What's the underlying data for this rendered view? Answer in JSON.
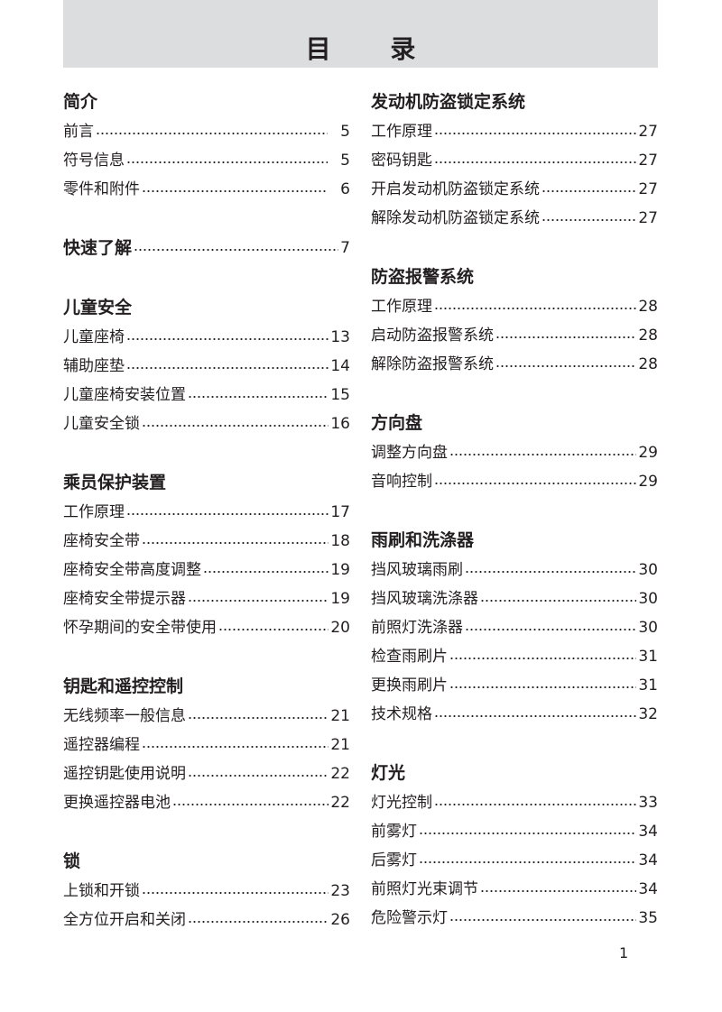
{
  "title": "目 录",
  "page_number": "1",
  "columns": [
    [
      {
        "heading": "简介",
        "gap": true,
        "items": [
          {
            "label": "前言",
            "page": "5"
          },
          {
            "label": "符号信息",
            "page": "5"
          },
          {
            "label": "零件和附件",
            "page": "6"
          }
        ]
      },
      {
        "heading": "快速了解",
        "page": "7",
        "items": []
      },
      {
        "heading": "儿童安全",
        "items": [
          {
            "label": "儿童座椅",
            "page": "13"
          },
          {
            "label": "辅助座垫",
            "page": "14"
          },
          {
            "label": "儿童座椅安装位置",
            "page": "15"
          },
          {
            "label": "儿童安全锁",
            "page": "16"
          }
        ]
      },
      {
        "heading": "乘员保护装置",
        "items": [
          {
            "label": "工作原理",
            "page": "17"
          },
          {
            "label": "座椅安全带",
            "page": "18"
          },
          {
            "label": "座椅安全带高度调整",
            "page": "19"
          },
          {
            "label": "座椅安全带提示器",
            "page": "19"
          },
          {
            "label": "怀孕期间的安全带使用",
            "page": "20"
          }
        ]
      },
      {
        "heading": "钥匙和遥控控制",
        "items": [
          {
            "label": "无线频率一般信息",
            "page": "21"
          },
          {
            "label": "遥控器编程",
            "page": "21"
          },
          {
            "label": "遥控钥匙使用说明",
            "page": "22"
          },
          {
            "label": "更换遥控器电池",
            "page": "22"
          }
        ]
      },
      {
        "heading": "锁",
        "items": [
          {
            "label": "上锁和开锁",
            "page": "23"
          },
          {
            "label": "全方位开启和关闭",
            "page": "26"
          }
        ]
      }
    ],
    [
      {
        "heading": "发动机防盗锁定系统",
        "items": [
          {
            "label": "工作原理",
            "page": "27"
          },
          {
            "label": "密码钥匙",
            "page": "27"
          },
          {
            "label": "开启发动机防盗锁定系统",
            "page": "27"
          },
          {
            "label": "解除发动机防盗锁定系统",
            "page": "27"
          }
        ]
      },
      {
        "heading": "防盗报警系统",
        "items": [
          {
            "label": "工作原理",
            "page": "28"
          },
          {
            "label": "启动防盗报警系统",
            "page": "28"
          },
          {
            "label": "解除防盗报警系统",
            "page": "28"
          }
        ]
      },
      {
        "heading": "方向盘",
        "items": [
          {
            "label": "调整方向盘",
            "page": "29"
          },
          {
            "label": "音响控制",
            "page": "29"
          }
        ]
      },
      {
        "heading": "雨刷和洗涤器",
        "items": [
          {
            "label": "挡风玻璃雨刷",
            "page": "30"
          },
          {
            "label": "挡风玻璃洗涤器",
            "page": "30"
          },
          {
            "label": "前照灯洗涤器",
            "page": "30"
          },
          {
            "label": "检查雨刷片",
            "page": "31"
          },
          {
            "label": "更换雨刷片",
            "page": "31"
          },
          {
            "label": "技术规格",
            "page": "32"
          }
        ]
      },
      {
        "heading": "灯光",
        "items": [
          {
            "label": "灯光控制",
            "page": "33"
          },
          {
            "label": "前雾灯",
            "page": "34"
          },
          {
            "label": "后雾灯",
            "page": "34"
          },
          {
            "label": "前照灯光束调节",
            "page": "34"
          },
          {
            "label": "危险警示灯",
            "page": "35"
          }
        ]
      }
    ]
  ]
}
